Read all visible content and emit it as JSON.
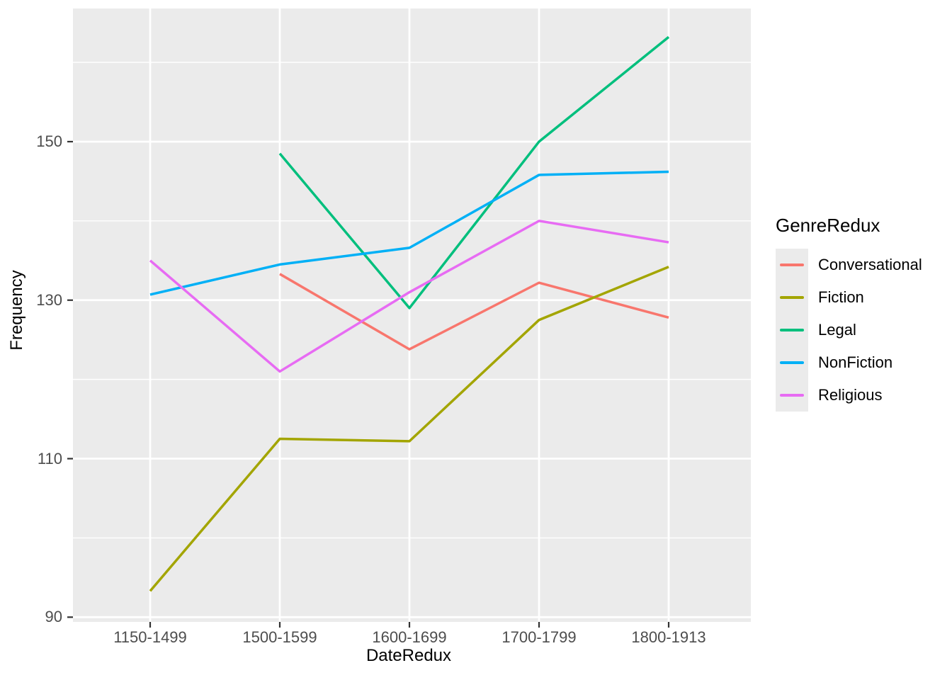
{
  "figure": {
    "x_axis_title": "DateRedux",
    "y_axis_title": "Frequency",
    "legend_title": "GenreRedux"
  },
  "chart_data": {
    "type": "line",
    "title": "",
    "xlabel": "DateRedux",
    "ylabel": "Frequency",
    "categories": [
      "1150-1499",
      "1500-1599",
      "1600-1699",
      "1700-1799",
      "1800-1913"
    ],
    "series": [
      {
        "name": "Conversational",
        "color": "#F8766D",
        "values": [
          null,
          133.3,
          123.8,
          132.2,
          127.8
        ]
      },
      {
        "name": "Fiction",
        "color": "#A3A500",
        "values": [
          93.3,
          112.5,
          112.2,
          127.5,
          134.2
        ]
      },
      {
        "name": "Legal",
        "color": "#00BF7D",
        "values": [
          null,
          148.5,
          129.0,
          150.0,
          163.2
        ]
      },
      {
        "name": "NonFiction",
        "color": "#00B0F6",
        "values": [
          130.7,
          134.5,
          136.6,
          145.8,
          146.2
        ]
      },
      {
        "name": "Religious",
        "color": "#E76BF3",
        "values": [
          135.0,
          121.0,
          131.0,
          140.0,
          137.3
        ]
      }
    ],
    "ylim": [
      89.4,
      166.8
    ],
    "yticks": [
      90,
      110,
      130,
      150
    ],
    "y_minor_ticks": [
      100,
      120,
      140,
      160
    ],
    "grid": true,
    "legend": {
      "title": "GenreRedux",
      "position": "right"
    },
    "colors": {
      "panel_background": "#EBEBEB",
      "gridline": "#FFFFFF",
      "tick_mark": "#333333",
      "tick_label": "#4D4D4D",
      "axis_title": "#000000",
      "legend_key_background": "#EBEBEB"
    }
  }
}
